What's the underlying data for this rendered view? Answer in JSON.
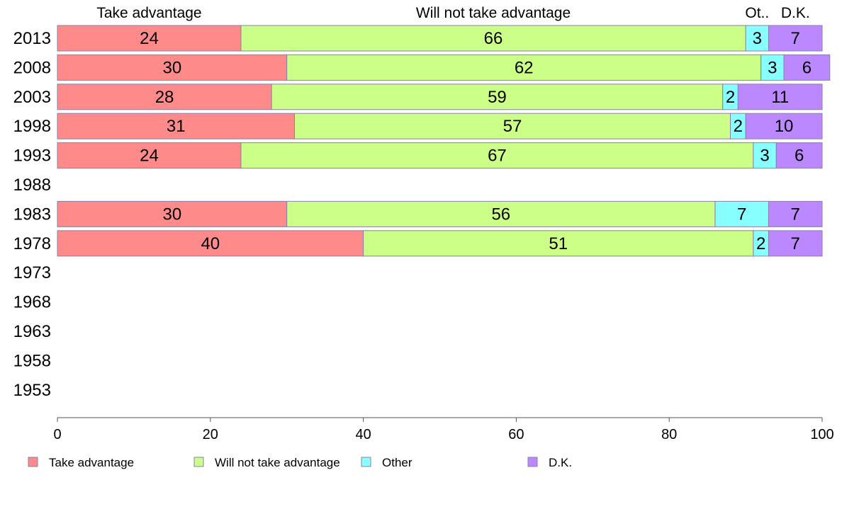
{
  "chart_data": {
    "type": "bar",
    "orientation": "horizontal",
    "stacked": true,
    "categories": [
      "2013",
      "2008",
      "2003",
      "1998",
      "1993",
      "1988",
      "1983",
      "1978",
      "1973",
      "1968",
      "1963",
      "1958",
      "1953"
    ],
    "series": [
      {
        "name": "Take advantage",
        "header": "Take advantage",
        "color": "#ff8a8a",
        "values": [
          24,
          30,
          28,
          31,
          24,
          null,
          30,
          40,
          null,
          null,
          null,
          null,
          null
        ]
      },
      {
        "name": "Will not take advantage",
        "header": "Will not take advantage",
        "color": "#ccff88",
        "values": [
          66,
          62,
          59,
          57,
          67,
          null,
          56,
          51,
          null,
          null,
          null,
          null,
          null
        ]
      },
      {
        "name": "Other",
        "header": "Ot..",
        "color": "#88ffff",
        "values": [
          3,
          3,
          2,
          2,
          3,
          null,
          7,
          2,
          null,
          null,
          null,
          null,
          null
        ]
      },
      {
        "name": "D.K.",
        "header": "D.K.",
        "color": "#bb88ff",
        "values": [
          7,
          6,
          11,
          10,
          6,
          null,
          7,
          7,
          null,
          null,
          null,
          null,
          null
        ]
      }
    ],
    "xlim": [
      0,
      100
    ],
    "xticks": [
      "0",
      "20",
      "40",
      "60",
      "80",
      "100"
    ],
    "grid": false,
    "legend_position": "bottom",
    "title": "",
    "xlabel": "",
    "ylabel": ""
  }
}
